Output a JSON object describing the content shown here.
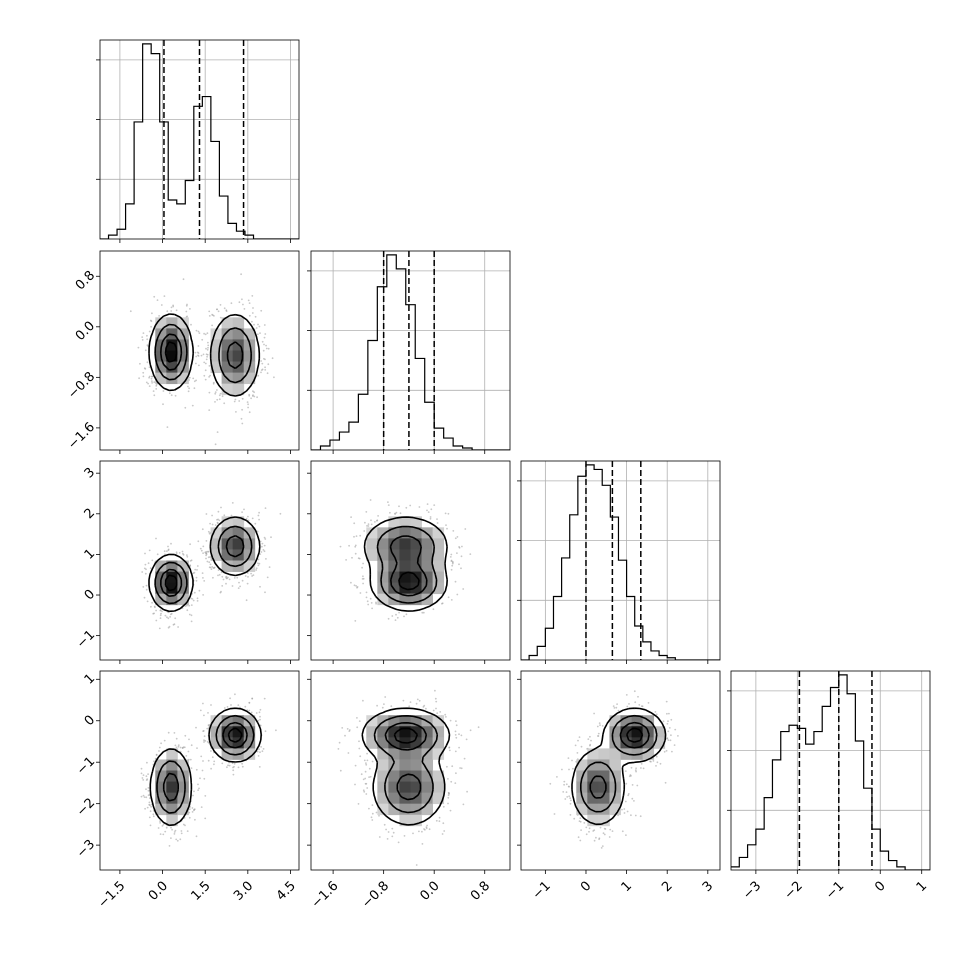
{
  "chart_data": {
    "type": "corner",
    "grid": true,
    "variables": [
      {
        "range": [
          -2.2,
          4.8
        ],
        "ticks": [
          -1.5,
          0.0,
          1.5,
          3.0,
          4.5
        ],
        "tick_labels": [
          "−1.5",
          "0.0",
          "1.5",
          "3.0",
          "4.5"
        ],
        "quantiles": [
          0.05,
          1.3,
          2.85
        ],
        "hist_bin_start": -2.2,
        "hist_bin_width": 0.3,
        "hist_counts": [
          0,
          2,
          5,
          18,
          60,
          100,
          95,
          60,
          20,
          18,
          30,
          68,
          73,
          50,
          22,
          8,
          4,
          2,
          0,
          0,
          0,
          0,
          0,
          0
        ]
      },
      {
        "range": [
          -1.95,
          1.2
        ],
        "ticks": [
          -1.6,
          -0.8,
          0.0,
          0.8
        ],
        "tick_labels": [
          "−1.6",
          "−0.8",
          "0.0",
          "0.8"
        ],
        "quantiles": [
          -0.8,
          -0.4,
          0.0
        ],
        "hist_bin_start": -1.95,
        "hist_bin_width": 0.15,
        "hist_counts": [
          0,
          2,
          5,
          9,
          14,
          28,
          55,
          82,
          98,
          91,
          73,
          46,
          24,
          11,
          6,
          2,
          1,
          0,
          0,
          0,
          0
        ]
      },
      {
        "range": [
          -1.6,
          3.3
        ],
        "ticks": [
          -1,
          0,
          1,
          2,
          3
        ],
        "tick_labels": [
          "−1",
          "0",
          "1",
          "2",
          "3"
        ],
        "quantiles": [
          0.0,
          0.65,
          1.35
        ],
        "hist_bin_start": -1.6,
        "hist_bin_width": 0.2,
        "hist_counts": [
          0,
          2,
          6,
          14,
          28,
          45,
          64,
          81,
          86,
          84,
          77,
          63,
          44,
          28,
          15,
          8,
          4,
          2,
          1,
          0,
          0,
          0,
          0,
          0,
          0
        ]
      },
      {
        "range": [
          -3.6,
          1.2
        ],
        "ticks": [
          -3,
          -2,
          -1,
          0,
          1
        ],
        "tick_labels": [
          "−3",
          "−2",
          "−1",
          "0",
          "1"
        ],
        "quantiles": [
          -1.95,
          -1.0,
          -0.2
        ],
        "hist_bin_start": -3.6,
        "hist_bin_width": 0.2,
        "hist_counts": [
          1,
          4,
          8,
          13,
          23,
          35,
          44,
          46,
          45,
          40,
          44,
          52,
          58,
          62,
          56,
          41,
          26,
          13,
          6,
          3,
          1,
          0,
          0,
          0
        ]
      }
    ],
    "components": [
      {
        "weight": 0.5,
        "mean": [
          0.3,
          -0.4,
          0.3,
          -1.6
        ],
        "sd": [
          0.35,
          0.28,
          0.32,
          0.45
        ]
      },
      {
        "weight": 0.5,
        "mean": [
          2.55,
          -0.45,
          1.2,
          -0.35
        ],
        "sd": [
          0.42,
          0.32,
          0.35,
          0.3
        ]
      }
    ]
  }
}
